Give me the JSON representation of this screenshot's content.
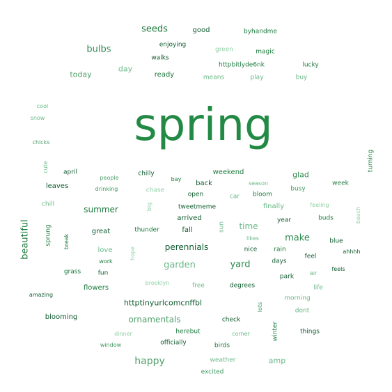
{
  "cloud": {
    "palette": {
      "darkest": "#0f5a2e",
      "dark": "#1d7a3d",
      "medium": "#3f9a60",
      "light": "#6ab987",
      "lightest": "#8fcfa4"
    },
    "words": [
      {
        "text": "spring",
        "color": "#238a45"
      },
      {
        "text": "seeds",
        "color": "#1d7a3d"
      },
      {
        "text": "good",
        "color": "#0f5a2e"
      },
      {
        "text": "byhandme",
        "color": "#1d7a3d"
      },
      {
        "text": "enjoying",
        "color": "#0f5a2e"
      },
      {
        "text": "bulbs",
        "color": "#2e8b4f"
      },
      {
        "text": "walks",
        "color": "#0f5a2e"
      },
      {
        "text": "green",
        "color": "#8fcfa4"
      },
      {
        "text": "magic",
        "color": "#1d7a3d"
      },
      {
        "text": "day",
        "color": "#6ab987"
      },
      {
        "text": "httpbitlyde6nk",
        "color": "#1d7a3d"
      },
      {
        "text": "lucky",
        "color": "#1d7a3d"
      },
      {
        "text": "today",
        "color": "#4fa06b"
      },
      {
        "text": "ready",
        "color": "#1d7a3d"
      },
      {
        "text": "means",
        "color": "#6ab987"
      },
      {
        "text": "play",
        "color": "#6ab987"
      },
      {
        "text": "buy",
        "color": "#6ab987"
      },
      {
        "text": "cool",
        "color": "#6ab987"
      },
      {
        "text": "snow",
        "color": "#6ab987"
      },
      {
        "text": "chicks",
        "color": "#4fa06b"
      },
      {
        "text": "cute",
        "color": "#6ab987"
      },
      {
        "text": "turning",
        "color": "#1d7a3d"
      },
      {
        "text": "april",
        "color": "#0f5a2e"
      },
      {
        "text": "people",
        "color": "#4fa06b"
      },
      {
        "text": "chilly",
        "color": "#0f5a2e"
      },
      {
        "text": "weekend",
        "color": "#1d7a3d"
      },
      {
        "text": "glad",
        "color": "#2e8b4f"
      },
      {
        "text": "bay",
        "color": "#1d7a3d"
      },
      {
        "text": "back",
        "color": "#0f5a2e"
      },
      {
        "text": "season",
        "color": "#6ab987"
      },
      {
        "text": "week",
        "color": "#1d7a3d"
      },
      {
        "text": "leaves",
        "color": "#0f5a2e"
      },
      {
        "text": "drinking",
        "color": "#3f9a60"
      },
      {
        "text": "chase",
        "color": "#8fcfa4"
      },
      {
        "text": "busy",
        "color": "#3f9a60"
      },
      {
        "text": "open",
        "color": "#0f5a2e"
      },
      {
        "text": "car",
        "color": "#6ab987"
      },
      {
        "text": "bloom",
        "color": "#1d7a3d"
      },
      {
        "text": "chill",
        "color": "#6ab987"
      },
      {
        "text": "big",
        "color": "#8fcfa4"
      },
      {
        "text": "tweetmeme",
        "color": "#0f5a2e"
      },
      {
        "text": "finally",
        "color": "#6ab987"
      },
      {
        "text": "feeling",
        "color": "#8fcfa4"
      },
      {
        "text": "summer",
        "color": "#1d7a3d"
      },
      {
        "text": "beach",
        "color": "#8fcfa4"
      },
      {
        "text": "arrived",
        "color": "#0f5a2e"
      },
      {
        "text": "buds",
        "color": "#1d7a3d"
      },
      {
        "text": "beautiful",
        "color": "#1d7a3d"
      },
      {
        "text": "sprung",
        "color": "#1d7a3d"
      },
      {
        "text": "year",
        "color": "#0f5a2e"
      },
      {
        "text": "time",
        "color": "#6ab987"
      },
      {
        "text": "sun",
        "color": "#6ab987"
      },
      {
        "text": "great",
        "color": "#0f5a2e"
      },
      {
        "text": "thunder",
        "color": "#1d7a3d"
      },
      {
        "text": "fall",
        "color": "#0f5a2e"
      },
      {
        "text": "break",
        "color": "#1d7a3d"
      },
      {
        "text": "make",
        "color": "#2e8b4f"
      },
      {
        "text": "likes",
        "color": "#6ab987"
      },
      {
        "text": "blue",
        "color": "#0f5a2e"
      },
      {
        "text": "perennials",
        "color": "#0f5a2e"
      },
      {
        "text": "ahhhh",
        "color": "#0f5a2e"
      },
      {
        "text": "love",
        "color": "#6ab987"
      },
      {
        "text": "hope",
        "color": "#8fcfa4"
      },
      {
        "text": "nice",
        "color": "#0f5a2e"
      },
      {
        "text": "rain",
        "color": "#1d7a3d"
      },
      {
        "text": "work",
        "color": "#1d7a3d"
      },
      {
        "text": "feel",
        "color": "#0f5a2e"
      },
      {
        "text": "garden",
        "color": "#6ab987"
      },
      {
        "text": "yard",
        "color": "#2e8b4f"
      },
      {
        "text": "days",
        "color": "#0f5a2e"
      },
      {
        "text": "fun",
        "color": "#0f5a2e"
      },
      {
        "text": "feels",
        "color": "#0f5a2e"
      },
      {
        "text": "grass",
        "color": "#1d7a3d"
      },
      {
        "text": "air",
        "color": "#6ab987"
      },
      {
        "text": "park",
        "color": "#0f5a2e"
      },
      {
        "text": "brooklyn",
        "color": "#8fcfa4"
      },
      {
        "text": "flowers",
        "color": "#1d7a3d"
      },
      {
        "text": "free",
        "color": "#6ab987"
      },
      {
        "text": "degrees",
        "color": "#0f5a2e"
      },
      {
        "text": "life",
        "color": "#6ab987"
      },
      {
        "text": "amazing",
        "color": "#0f5a2e"
      },
      {
        "text": "morning",
        "color": "#6ab987"
      },
      {
        "text": "httptinyurlcomcnffbl",
        "color": "#0f5a2e"
      },
      {
        "text": "lots",
        "color": "#3f9a60"
      },
      {
        "text": "dont",
        "color": "#6ab987"
      },
      {
        "text": "blooming",
        "color": "#0f5a2e"
      },
      {
        "text": "ornamentals",
        "color": "#4fa06b"
      },
      {
        "text": "check",
        "color": "#0f5a2e"
      },
      {
        "text": "winter",
        "color": "#1d7a3d"
      },
      {
        "text": "herebut",
        "color": "#1d7a3d"
      },
      {
        "text": "dinner",
        "color": "#8fcfa4"
      },
      {
        "text": "corner",
        "color": "#6ab987"
      },
      {
        "text": "things",
        "color": "#0f5a2e"
      },
      {
        "text": "window",
        "color": "#3f9a60"
      },
      {
        "text": "officially",
        "color": "#0f5a2e"
      },
      {
        "text": "birds",
        "color": "#1d7a3d"
      },
      {
        "text": "happy",
        "color": "#4fa06b"
      },
      {
        "text": "weather",
        "color": "#6ab987"
      },
      {
        "text": "amp",
        "color": "#6ab987"
      },
      {
        "text": "excited",
        "color": "#3f9a60"
      }
    ]
  }
}
